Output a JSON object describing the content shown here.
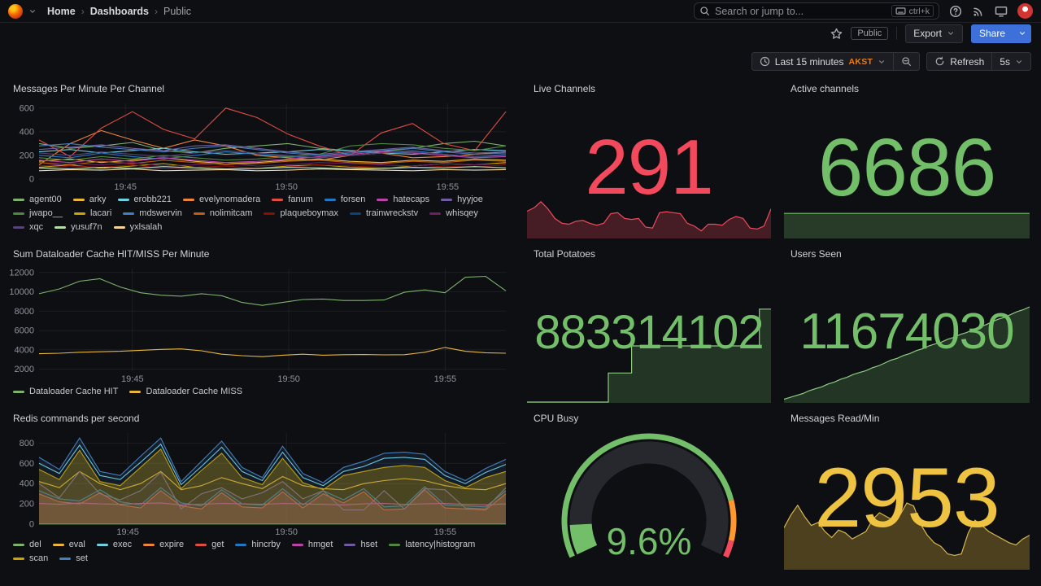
{
  "navbar": {
    "breadcrumb": [
      {
        "label": "Home"
      },
      {
        "label": "Dashboards"
      },
      {
        "label": "Public"
      }
    ],
    "search": {
      "placeholder": "Search or jump to...",
      "shortcut": "ctrl+k"
    }
  },
  "toolbar": {
    "visibility_badge": "Public",
    "export_label": "Export",
    "share_label": "Share"
  },
  "timebar": {
    "range_label": "Last 15 minutes",
    "timezone": "AKST",
    "refresh_label": "Refresh",
    "interval": "5s"
  },
  "colors": {
    "primary_blue": "#3D71D9",
    "orange_accent": "#EB7B18",
    "red": "#F2495C",
    "green": "#73BF69",
    "yellow": "#EEC341"
  },
  "panels": [
    {
      "id": "messages-per-minute",
      "title": "Messages Per Minute Per Channel",
      "type": "timeseries",
      "ylim": [
        0,
        640
      ],
      "yticks": [
        0,
        200,
        400,
        600
      ],
      "xticks": [
        {
          "f": 0.185,
          "label": "19:45"
        },
        {
          "f": 0.53,
          "label": "19:50"
        },
        {
          "f": 0.875,
          "label": "19:55"
        }
      ],
      "series": [
        {
          "name": "agent00",
          "color": "#7EB26D",
          "values": [
            300,
            260,
            280,
            310,
            240,
            220,
            260,
            280,
            300,
            260,
            240,
            230,
            260,
            300,
            320,
            280
          ]
        },
        {
          "name": "arky",
          "color": "#EAB839",
          "values": [
            150,
            170,
            140,
            160,
            180,
            150,
            130,
            140,
            160,
            170,
            150,
            140,
            160,
            150,
            170,
            160
          ]
        },
        {
          "name": "erobb221",
          "color": "#6ED0E0",
          "values": [
            230,
            250,
            220,
            240,
            260,
            230,
            210,
            220,
            230,
            250,
            240,
            220,
            210,
            230,
            250,
            240
          ]
        },
        {
          "name": "evelynomadera",
          "color": "#EF843C",
          "values": [
            120,
            300,
            410,
            330,
            260,
            330,
            280,
            200,
            180,
            160,
            200,
            220,
            180,
            190,
            210,
            230
          ]
        },
        {
          "name": "fanum",
          "color": "#E24D42",
          "values": [
            330,
            190,
            430,
            570,
            420,
            340,
            600,
            520,
            380,
            280,
            200,
            390,
            470,
            300,
            240,
            570
          ]
        },
        {
          "name": "forsen",
          "color": "#1F78C1",
          "values": [
            200,
            180,
            220,
            190,
            170,
            200,
            230,
            210,
            190,
            180,
            200,
            220,
            240,
            210,
            190,
            200
          ]
        },
        {
          "name": "hatecaps",
          "color": "#BA43A9",
          "values": [
            160,
            140,
            170,
            150,
            180,
            160,
            140,
            150,
            170,
            190,
            210,
            230,
            220,
            200,
            180,
            190
          ]
        },
        {
          "name": "hyyjoe",
          "color": "#705DA0",
          "values": [
            250,
            270,
            290,
            260,
            240,
            280,
            290,
            260,
            230,
            210,
            230,
            250,
            270,
            240,
            220,
            230
          ]
        },
        {
          "name": "jwapo__",
          "color": "#508642",
          "values": [
            180,
            160,
            190,
            170,
            200,
            180,
            160,
            170,
            190,
            210,
            280,
            300,
            290,
            260,
            240,
            280
          ]
        },
        {
          "name": "lacari",
          "color": "#CCA300",
          "values": [
            100,
            120,
            90,
            110,
            130,
            100,
            80,
            90,
            110,
            120,
            100,
            90,
            110,
            130,
            120,
            140
          ]
        },
        {
          "name": "mdswervin",
          "color": "#447EBC",
          "values": [
            280,
            300,
            270,
            250,
            230,
            260,
            280,
            250,
            220,
            200,
            220,
            240,
            260,
            230,
            210,
            220
          ]
        },
        {
          "name": "nolimitcam",
          "color": "#C15C17",
          "values": [
            140,
            120,
            150,
            130,
            160,
            140,
            120,
            130,
            150,
            160,
            140,
            130,
            150,
            140,
            160,
            150
          ]
        },
        {
          "name": "plaqueboymax",
          "color": "#890F02",
          "values": [
            90,
            110,
            100,
            120,
            90,
            100,
            110,
            90,
            100,
            120,
            110,
            100,
            90,
            110,
            100,
            120
          ]
        },
        {
          "name": "trainwreckstv",
          "color": "#0A437C",
          "values": [
            85,
            90,
            80,
            85,
            90,
            85,
            80,
            85,
            90,
            85,
            80,
            85,
            90,
            85,
            80,
            85
          ]
        },
        {
          "name": "whisqey",
          "color": "#6D1F62",
          "values": [
            110,
            130,
            120,
            140,
            110,
            120,
            130,
            110,
            120,
            140,
            130,
            120,
            110,
            130,
            120,
            130
          ]
        },
        {
          "name": "xqc",
          "color": "#584477",
          "values": [
            220,
            200,
            230,
            210,
            190,
            220,
            240,
            220,
            200,
            180,
            200,
            220,
            230,
            210,
            190,
            210
          ]
        },
        {
          "name": "yusuf7n",
          "color": "#B7DBAB",
          "values": [
            95,
            85,
            100,
            90,
            105,
            95,
            85,
            90,
            100,
            95,
            85,
            90,
            100,
            95,
            105,
            95
          ]
        },
        {
          "name": "yxlsalah",
          "color": "#F4D598",
          "values": [
            70,
            80,
            75,
            85,
            70,
            75,
            80,
            70,
            75,
            85,
            80,
            75,
            70,
            80,
            75,
            80
          ]
        }
      ]
    },
    {
      "id": "live-channels",
      "title": "Live Channels",
      "type": "stat",
      "value": "291",
      "color": "#F2495C",
      "spark": {
        "line": "#F2495C",
        "fill": "rgba(242,73,92,0.25)",
        "height": 62,
        "values": [
          55,
          62,
          75,
          60,
          40,
          30,
          28,
          34,
          36,
          30,
          26,
          30,
          50,
          52,
          40,
          38,
          40,
          22,
          20,
          52,
          54,
          52,
          50,
          30,
          24,
          14,
          28,
          28,
          26,
          38,
          44,
          40,
          20,
          18,
          24,
          60
        ]
      }
    },
    {
      "id": "active-channels",
      "title": "Active channels",
      "type": "stat",
      "value": "6686",
      "color": "#73BF69",
      "spark": {
        "line": "#73BF69",
        "fill": "rgba(115,191,105,0.25)",
        "height": 34,
        "values": [
          96,
          96,
          96,
          96,
          96,
          96,
          96,
          96,
          96,
          96
        ]
      }
    },
    {
      "id": "dataloader-cache",
      "title": "Sum Dataloader Cache HIT/MISS Per Minute",
      "type": "timeseries",
      "ylim": [
        1800,
        12400
      ],
      "yticks": [
        2000,
        4000,
        6000,
        8000,
        10000,
        12000
      ],
      "xticks": [
        {
          "f": 0.2,
          "label": "19:45"
        },
        {
          "f": 0.535,
          "label": "19:50"
        },
        {
          "f": 0.87,
          "label": "19:55"
        }
      ],
      "series": [
        {
          "name": "Dataloader Cache HIT",
          "color": "#7EB26D",
          "values": [
            9800,
            10300,
            11100,
            11350,
            10500,
            9900,
            9650,
            9550,
            9800,
            9600,
            8900,
            8600,
            8900,
            9200,
            9250,
            9100,
            9100,
            9150,
            9950,
            10200,
            9900,
            11500,
            11600,
            10100
          ]
        },
        {
          "name": "Dataloader Cache MISS",
          "color": "#EAB839",
          "values": [
            3600,
            3650,
            3750,
            3800,
            3850,
            3950,
            4050,
            4100,
            3900,
            3550,
            3400,
            3300,
            3450,
            3550,
            3450,
            3500,
            3520,
            3480,
            3500,
            3750,
            4250,
            3850,
            3700,
            3650
          ]
        }
      ]
    },
    {
      "id": "total-potatoes",
      "title": "Total Potatoes",
      "type": "stat",
      "value": "883314102",
      "color": "#73BF69",
      "spark": {
        "line": "#8FCB81",
        "fill": "rgba(115,191,105,0.22)",
        "height": 122,
        "step": true,
        "values": [
          0,
          0,
          0,
          0,
          0,
          0,
          0,
          30,
          30,
          58,
          58,
          58,
          58,
          58,
          58,
          58,
          58,
          58,
          58,
          58,
          96,
          96
        ]
      }
    },
    {
      "id": "users-seen",
      "title": "Users Seen",
      "type": "stat",
      "value": "11674030",
      "color": "#73BF69",
      "spark": {
        "line": "#8FCB81",
        "fill": "rgba(115,191,105,0.22)",
        "height": 120,
        "values": [
          3,
          5,
          7,
          9,
          12,
          14,
          16,
          19,
          21,
          24,
          26,
          29,
          31,
          33,
          36,
          38,
          41,
          44,
          46,
          49,
          51,
          54,
          56,
          59,
          61,
          63,
          66,
          68,
          71,
          73,
          76,
          79,
          81,
          84,
          87,
          89,
          92,
          95,
          97,
          100
        ]
      }
    },
    {
      "id": "redis-commands",
      "title": "Redis commands per second",
      "type": "timeseries",
      "ylim": [
        0,
        900
      ],
      "yticks": [
        0,
        200,
        400,
        600,
        800
      ],
      "xticks": [
        {
          "f": 0.19,
          "label": "19:45"
        },
        {
          "f": 0.53,
          "label": "19:50"
        },
        {
          "f": 0.87,
          "label": "19:55"
        }
      ],
      "series": [
        {
          "name": "del",
          "color": "#7EB26D",
          "values": [
            2,
            2,
            2,
            2,
            2,
            2,
            2,
            2,
            2,
            2,
            2,
            2,
            2,
            2,
            2,
            2,
            2,
            2,
            2,
            2,
            2,
            2,
            2,
            2
          ]
        },
        {
          "name": "eval",
          "color": "#EAB839",
          "values": [
            420,
            360,
            520,
            400,
            340,
            400,
            520,
            340,
            380,
            460,
            400,
            350,
            470,
            380,
            350,
            340,
            400,
            430,
            450,
            430,
            380,
            350,
            340,
            400
          ]
        },
        {
          "name": "exec",
          "color": "#6ED0E0",
          "values": [
            600,
            500,
            780,
            480,
            440,
            610,
            790,
            390,
            570,
            760,
            520,
            430,
            710,
            460,
            380,
            520,
            570,
            650,
            660,
            640,
            480,
            400,
            510,
            590
          ]
        },
        {
          "name": "expire",
          "color": "#EF843C",
          "values": [
            4,
            4,
            4,
            4,
            4,
            4,
            4,
            4,
            4,
            4,
            4,
            4,
            4,
            4,
            4,
            4,
            4,
            4,
            4,
            4,
            4,
            4,
            4,
            4
          ]
        },
        {
          "name": "get",
          "color": "#E24D42",
          "fill": "rgba(226,77,66,0.32)",
          "values": [
            300,
            220,
            200,
            310,
            190,
            160,
            330,
            180,
            150,
            310,
            170,
            160,
            320,
            160,
            300,
            210,
            320,
            140,
            150,
            340,
            160,
            150,
            140,
            300
          ]
        },
        {
          "name": "hincrby",
          "color": "#1F78C1",
          "fill": "rgba(31,120,193,0.10)",
          "values": [
            330,
            250,
            230,
            340,
            220,
            190,
            360,
            210,
            180,
            340,
            200,
            190,
            350,
            190,
            330,
            240,
            350,
            170,
            180,
            370,
            190,
            180,
            170,
            330
          ]
        },
        {
          "name": "hmget",
          "color": "#BA43A9",
          "values": [
            205,
            195,
            210,
            200,
            195,
            205,
            210,
            190,
            195,
            205,
            200,
            195,
            205,
            200,
            195,
            190,
            200,
            205,
            195,
            200,
            205,
            195,
            190,
            200
          ]
        },
        {
          "name": "hset",
          "color": "#705DA0",
          "fill": "rgba(112,93,160,0.10)",
          "values": [
            400,
            260,
            520,
            300,
            240,
            330,
            510,
            150,
            300,
            360,
            250,
            310,
            420,
            250,
            330,
            140,
            140,
            330,
            150,
            350,
            340,
            160,
            150,
            360
          ]
        },
        {
          "name": "latency|histogram",
          "color": "#508642",
          "values": [
            2,
            2,
            2,
            2,
            2,
            2,
            2,
            2,
            2,
            2,
            2,
            2,
            2,
            2,
            2,
            2,
            2,
            2,
            2,
            2,
            2,
            2,
            2,
            2
          ]
        },
        {
          "name": "scan",
          "color": "#CCA300",
          "fill": "rgba(204,163,0,0.32)",
          "values": [
            540,
            440,
            730,
            420,
            380,
            560,
            740,
            350,
            530,
            700,
            460,
            390,
            650,
            410,
            340,
            480,
            520,
            560,
            580,
            560,
            430,
            360,
            460,
            520
          ]
        },
        {
          "name": "set",
          "color": "#447EBC",
          "fill": "rgba(68,126,188,0.12)",
          "values": [
            660,
            540,
            850,
            520,
            480,
            670,
            850,
            420,
            620,
            820,
            560,
            460,
            770,
            500,
            410,
            560,
            620,
            700,
            710,
            690,
            520,
            430,
            550,
            640
          ]
        }
      ]
    },
    {
      "id": "cpu-busy",
      "title": "CPU Busy",
      "type": "gauge",
      "value": "9.6%",
      "percent": 9.6,
      "color": "#73BF69",
      "thresholds": [
        {
          "color": "#73BF69",
          "to": 0.83
        },
        {
          "color": "#FF9830",
          "to": 0.95
        },
        {
          "color": "#F2495C",
          "to": 1
        }
      ]
    },
    {
      "id": "messages-read-min",
      "title": "Messages Read/Min",
      "type": "stat",
      "value": "2953",
      "color": "#EEC341",
      "spark": {
        "line": "#D8B74F",
        "fill": "rgba(238,195,65,0.28)",
        "height": 95,
        "values": [
          55,
          72,
          85,
          70,
          58,
          62,
          50,
          42,
          52,
          48,
          40,
          45,
          50,
          66,
          75,
          70,
          65,
          72,
          88,
          84,
          60,
          45,
          35,
          30,
          20,
          18,
          20,
          48,
          65,
          58,
          50,
          45,
          40,
          35,
          32,
          40,
          45
        ]
      }
    }
  ]
}
